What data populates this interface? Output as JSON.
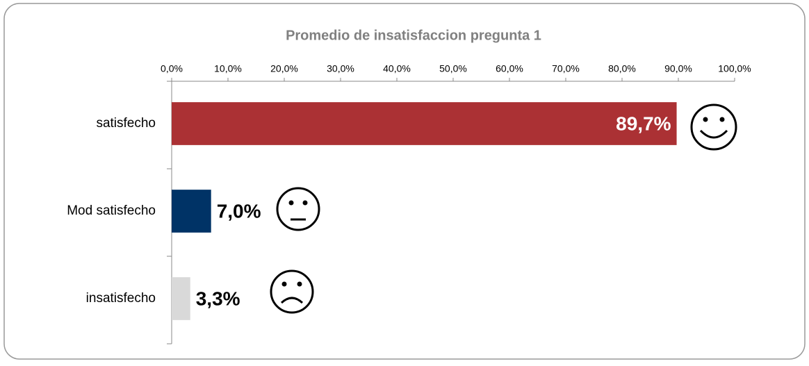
{
  "chart_data": {
    "type": "bar",
    "orientation": "horizontal",
    "title": "Promedio de insatisfaccion pregunta 1",
    "categories": [
      "satisfecho",
      "Mod satisfecho",
      "insatisfecho"
    ],
    "values": [
      89.7,
      7.0,
      3.3
    ],
    "value_labels": [
      "89,7%",
      "7,0%",
      "3,3%"
    ],
    "colors": [
      "#ab3134",
      "#003366",
      "#d9d9d9"
    ],
    "xlim": [
      0,
      100
    ],
    "xticks": [
      {
        "value": 0,
        "label": "0,0%"
      },
      {
        "value": 10,
        "label": "10,0%"
      },
      {
        "value": 20,
        "label": "20,0%"
      },
      {
        "value": 30,
        "label": "30,0%"
      },
      {
        "value": 40,
        "label": "40,0%"
      },
      {
        "value": 50,
        "label": "50,0%"
      },
      {
        "value": 60,
        "label": "60,0%"
      },
      {
        "value": 70,
        "label": "70,0%"
      },
      {
        "value": 80,
        "label": "80,0%"
      },
      {
        "value": 90,
        "label": "90,0%"
      },
      {
        "value": 100,
        "label": "100,0%"
      }
    ],
    "grid": false
  }
}
